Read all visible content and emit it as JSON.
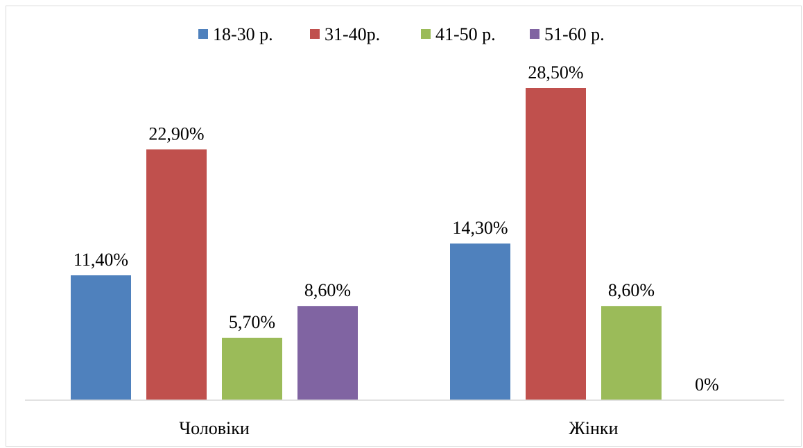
{
  "chart_data": {
    "type": "bar",
    "title": "",
    "xlabel": "",
    "ylabel": "",
    "categories": [
      "Чоловіки",
      "Жінки"
    ],
    "series": [
      {
        "name": "18-30 р.",
        "color": "#4f81bd",
        "values": [
          11.4,
          14.3
        ],
        "labels": [
          "11,40%",
          "14,30%"
        ]
      },
      {
        "name": "31-40р.",
        "color": "#c0504d",
        "values": [
          22.9,
          28.5
        ],
        "labels": [
          "22,90%",
          "28,50%"
        ]
      },
      {
        "name": "41-50 р.",
        "color": "#9bbb59",
        "values": [
          5.7,
          8.6
        ],
        "labels": [
          "5,70%",
          "8,60%"
        ]
      },
      {
        "name": "51-60 р.",
        "color": "#8064a2",
        "values": [
          8.6,
          0
        ],
        "labels": [
          "8,60%",
          "0%"
        ]
      }
    ],
    "ylim": [
      0,
      30
    ],
    "grid": false,
    "legend": "top"
  }
}
